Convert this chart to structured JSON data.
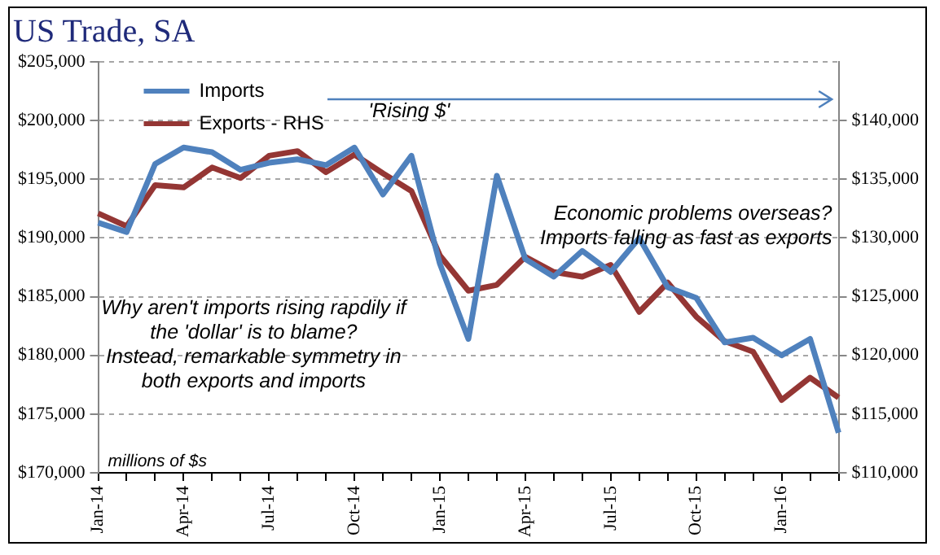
{
  "chart_data": {
    "type": "line",
    "title": "US Trade, SA",
    "categories": [
      "Jan-14",
      null,
      null,
      "Apr-14",
      null,
      null,
      "Jul-14",
      null,
      null,
      "Oct-14",
      null,
      null,
      "Jan-15",
      null,
      null,
      "Apr-15",
      null,
      null,
      "Jul-15",
      null,
      null,
      "Oct-15",
      null,
      null,
      "Jan-16",
      null,
      null
    ],
    "series": [
      {
        "name": "Imports",
        "color": "#4f81bd",
        "values": [
          191300,
          190500,
          196300,
          197700,
          197300,
          195800,
          196400,
          196700,
          196200,
          197700,
          193700,
          197000,
          187800,
          181400,
          195300,
          188200,
          186700,
          188900,
          187100,
          190000,
          185800,
          184900,
          181100,
          181500,
          180000,
          181400,
          173400
        ]
      },
      {
        "name": "Exports - RHS",
        "color": "#943634",
        "axis": "y2",
        "values": [
          132100,
          131000,
          134500,
          134300,
          136000,
          135100,
          137000,
          137400,
          135600,
          137100,
          135500,
          134000,
          128500,
          125500,
          126000,
          128400,
          127100,
          126700,
          127700,
          123700,
          126200,
          123300,
          121200,
          120300,
          116200,
          118100,
          116400
        ]
      }
    ],
    "ylim": [
      170000,
      205000
    ],
    "yticks": [
      {
        "value": 170000,
        "label": "$170,000"
      },
      {
        "value": 175000,
        "label": "$175,000"
      },
      {
        "value": 180000,
        "label": "$180,000"
      },
      {
        "value": 185000,
        "label": "$185,000"
      },
      {
        "value": 190000,
        "label": "$190,000"
      },
      {
        "value": 195000,
        "label": "$195,000"
      },
      {
        "value": 200000,
        "label": "$200,000"
      },
      {
        "value": 205000,
        "label": "$205,000"
      }
    ],
    "y2lim": [
      110000,
      145000
    ],
    "y2ticks": [
      {
        "value": 110000,
        "label": "$110,000"
      },
      {
        "value": 115000,
        "label": "$115,000"
      },
      {
        "value": 120000,
        "label": "$120,000"
      },
      {
        "value": 125000,
        "label": "$125,000"
      },
      {
        "value": 130000,
        "label": "$130,000"
      },
      {
        "value": 135000,
        "label": "$135,000"
      },
      {
        "value": 140000,
        "label": "$140,000"
      }
    ],
    "annotations": [
      "'Rising $'",
      "Economic problems overseas?\nImports falling as fast as exports",
      "Why aren't imports rising rapdily if\nthe 'dollar' is to blame?\nInstead, remarkable symmetry in\nboth exports and imports",
      "millions of $s"
    ],
    "grid": "y",
    "legend": "top left",
    "marker": "none",
    "line_style": "solid"
  }
}
